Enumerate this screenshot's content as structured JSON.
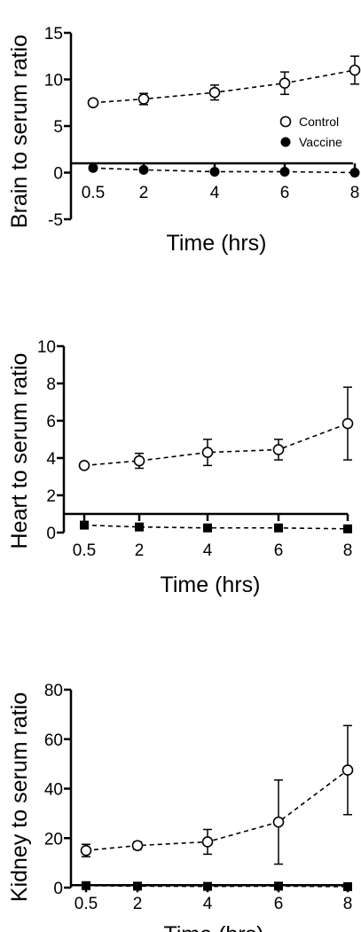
{
  "chart_data": [
    {
      "type": "line",
      "xlabel": "Time (hrs)",
      "ylabel": "Brain to serum ratio",
      "x": [
        0.5,
        2,
        4,
        6,
        8
      ],
      "x_tick_labels": [
        "0.5",
        "2",
        "4",
        "6",
        "8"
      ],
      "ylim": [
        -5,
        15
      ],
      "y_ticks": [
        -5,
        0,
        5,
        10,
        15
      ],
      "y_tick_labels": [
        "-5",
        "0",
        "5",
        "10",
        "15"
      ],
      "baseline": 1,
      "legend": "right",
      "series": [
        {
          "name": "Control",
          "marker": "open-circle",
          "values": [
            7.5,
            7.9,
            8.6,
            9.6,
            11.0
          ],
          "errors": [
            0.2,
            0.6,
            0.8,
            1.2,
            1.5
          ]
        },
        {
          "name": "Vaccine",
          "marker": "filled-circle",
          "values": [
            0.5,
            0.3,
            0.1,
            0.1,
            0.0
          ],
          "errors": [
            0,
            0,
            0,
            0,
            0
          ]
        }
      ]
    },
    {
      "type": "line",
      "xlabel": "Time (hrs)",
      "ylabel": "Heart to serum ratio",
      "x": [
        0.5,
        2,
        4,
        6,
        8
      ],
      "x_tick_labels": [
        "0.5",
        "2",
        "4",
        "6",
        "8"
      ],
      "ylim": [
        0,
        10
      ],
      "y_ticks": [
        0,
        2,
        4,
        6,
        8,
        10
      ],
      "y_tick_labels": [
        "0",
        "2",
        "4",
        "6",
        "8",
        "10"
      ],
      "baseline": 1,
      "series": [
        {
          "name": "",
          "marker": "open-circle",
          "values": [
            3.6,
            3.85,
            4.3,
            4.45,
            5.85
          ],
          "errors": [
            0.1,
            0.4,
            0.7,
            0.55,
            1.95
          ]
        },
        {
          "name": "",
          "marker": "filled-square",
          "values": [
            0.4,
            0.3,
            0.25,
            0.25,
            0.2
          ],
          "errors": [
            0,
            0,
            0,
            0,
            0
          ]
        }
      ]
    },
    {
      "type": "line",
      "xlabel": "Time (hrs)",
      "ylabel": "Kidney to serum ratio",
      "x": [
        0.5,
        2,
        4,
        6,
        8
      ],
      "x_tick_labels": [
        "0.5",
        "2",
        "4",
        "6",
        "8"
      ],
      "ylim": [
        0,
        80
      ],
      "y_ticks": [
        0,
        20,
        40,
        60,
        80
      ],
      "y_tick_labels": [
        "0",
        "20",
        "40",
        "60",
        "80"
      ],
      "baseline": 1,
      "series": [
        {
          "name": "",
          "marker": "open-circle",
          "values": [
            15,
            17,
            18.5,
            26.5,
            47.5
          ],
          "errors": [
            2.5,
            1.5,
            5,
            17,
            18
          ]
        },
        {
          "name": "",
          "marker": "filled-square",
          "values": [
            0.8,
            0.6,
            0.5,
            0.6,
            0.4
          ],
          "errors": [
            0,
            0,
            0,
            0,
            0
          ]
        }
      ]
    }
  ]
}
